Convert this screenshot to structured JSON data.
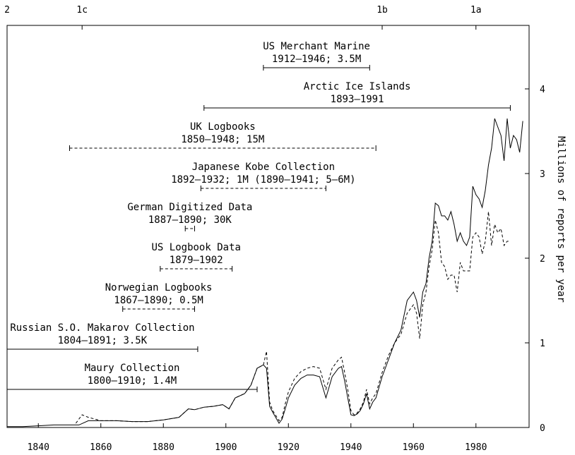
{
  "chart_data": {
    "type": "line",
    "x": {
      "lim": [
        1830,
        1997
      ],
      "ticks": [
        1840,
        1860,
        1880,
        1900,
        1920,
        1940,
        1960,
        1980
      ]
    },
    "y": {
      "lim": [
        0,
        4.75
      ],
      "ticks": [
        0,
        1,
        2,
        3,
        4
      ],
      "label": "Millions of reports per year"
    },
    "top_axis": {
      "ticks": [
        {
          "x": 1830,
          "label": "2"
        },
        {
          "x": 1854,
          "label": "1c"
        },
        {
          "x": 1950,
          "label": "1b"
        },
        {
          "x": 1980,
          "label": "1a"
        }
      ]
    },
    "grid": false,
    "series": [
      {
        "style": "solid",
        "x": [
          1830,
          1835,
          1840,
          1845,
          1850,
          1853,
          1856,
          1860,
          1865,
          1870,
          1875,
          1880,
          1885,
          1888,
          1890,
          1893,
          1896,
          1899,
          1901,
          1903,
          1906,
          1908,
          1910,
          1912,
          1913,
          1914,
          1915,
          1917,
          1918,
          1919,
          1920,
          1922,
          1924,
          1926,
          1928,
          1930,
          1932,
          1934,
          1936,
          1937,
          1938,
          1939,
          1940,
          1941,
          1942,
          1943,
          1944,
          1945,
          1946,
          1947,
          1948,
          1950,
          1952,
          1954,
          1956,
          1958,
          1960,
          1961,
          1962,
          1963,
          1964,
          1965,
          1966,
          1967,
          1968,
          1969,
          1970,
          1971,
          1972,
          1973,
          1974,
          1975,
          1976,
          1977,
          1978,
          1979,
          1980,
          1981,
          1982,
          1983,
          1984,
          1985,
          1986,
          1987,
          1988,
          1989,
          1990,
          1991,
          1992,
          1993,
          1994,
          1995
        ],
        "y": [
          0.01,
          0.01,
          0.02,
          0.03,
          0.03,
          0.03,
          0.08,
          0.08,
          0.08,
          0.07,
          0.07,
          0.09,
          0.12,
          0.22,
          0.21,
          0.24,
          0.25,
          0.27,
          0.22,
          0.35,
          0.4,
          0.5,
          0.7,
          0.74,
          0.7,
          0.25,
          0.18,
          0.05,
          0.1,
          0.22,
          0.35,
          0.5,
          0.58,
          0.62,
          0.62,
          0.6,
          0.35,
          0.6,
          0.7,
          0.72,
          0.55,
          0.35,
          0.15,
          0.14,
          0.16,
          0.2,
          0.28,
          0.4,
          0.22,
          0.3,
          0.35,
          0.6,
          0.8,
          1.0,
          1.15,
          1.5,
          1.6,
          1.5,
          1.3,
          1.6,
          1.7,
          2.0,
          2.2,
          2.65,
          2.62,
          2.5,
          2.5,
          2.45,
          2.55,
          2.4,
          2.2,
          2.3,
          2.2,
          2.15,
          2.25,
          2.85,
          2.75,
          2.7,
          2.6,
          2.8,
          3.1,
          3.3,
          3.65,
          3.55,
          3.45,
          3.15,
          3.65,
          3.3,
          3.45,
          3.4,
          3.25,
          3.62
        ]
      },
      {
        "style": "dashed",
        "x": [
          1852,
          1854,
          1856,
          1860,
          1865,
          1870,
          1875,
          1880,
          1885,
          1888,
          1890,
          1893,
          1896,
          1899,
          1901,
          1903,
          1906,
          1908,
          1910,
          1912,
          1913,
          1914,
          1915,
          1917,
          1918,
          1919,
          1920,
          1922,
          1924,
          1926,
          1928,
          1930,
          1932,
          1934,
          1936,
          1937,
          1938,
          1939,
          1940,
          1941,
          1942,
          1943,
          1944,
          1945,
          1946,
          1947,
          1948,
          1950,
          1952,
          1954,
          1956,
          1958,
          1960,
          1961,
          1962,
          1963,
          1964,
          1965,
          1966,
          1967,
          1968,
          1969,
          1970,
          1971,
          1972,
          1973,
          1974,
          1975,
          1976,
          1977,
          1978,
          1979,
          1980,
          1981,
          1982,
          1983,
          1984,
          1985,
          1986,
          1987,
          1988,
          1989,
          1990,
          1991
        ],
        "y": [
          0.05,
          0.15,
          0.12,
          0.08,
          0.08,
          0.07,
          0.07,
          0.09,
          0.12,
          0.22,
          0.21,
          0.24,
          0.25,
          0.27,
          0.22,
          0.35,
          0.4,
          0.5,
          0.7,
          0.74,
          0.9,
          0.3,
          0.2,
          0.08,
          0.12,
          0.28,
          0.42,
          0.58,
          0.66,
          0.7,
          0.72,
          0.7,
          0.45,
          0.7,
          0.8,
          0.83,
          0.65,
          0.45,
          0.2,
          0.15,
          0.17,
          0.22,
          0.3,
          0.45,
          0.28,
          0.35,
          0.4,
          0.65,
          0.85,
          1.0,
          1.1,
          1.35,
          1.45,
          1.35,
          1.05,
          1.45,
          1.6,
          1.9,
          2.1,
          2.45,
          2.3,
          1.95,
          1.9,
          1.75,
          1.8,
          1.8,
          1.6,
          1.95,
          1.85,
          1.85,
          1.85,
          2.25,
          2.3,
          2.25,
          2.05,
          2.2,
          2.55,
          2.15,
          2.4,
          2.3,
          2.35,
          2.15,
          2.2,
          2.2
        ]
      }
    ],
    "collections": [
      {
        "title": "US Merchant Marine",
        "subtitle": "1912–1946; 3.5M",
        "start": 1912,
        "end": 1946,
        "row": 0,
        "style": "solid"
      },
      {
        "title": "Arctic Ice Islands",
        "subtitle": "1893–1991",
        "start": 1893,
        "end": 1991,
        "row": 1,
        "style": "solid"
      },
      {
        "title": "UK Logbooks",
        "subtitle": "1850–1948; 15M",
        "start": 1850,
        "end": 1948,
        "row": 2,
        "style": "dashed"
      },
      {
        "title": "Japanese Kobe Collection",
        "subtitle": "1892–1932; 1M (1890–1941; 5–6M)",
        "start": 1892,
        "end": 1932,
        "row": 3,
        "style": "dashed"
      },
      {
        "title": "German Digitized Data",
        "subtitle": "1887–1890; 30K",
        "start": 1887,
        "end": 1890,
        "row": 4,
        "style": "dashed"
      },
      {
        "title": "US Logbook Data",
        "subtitle": "1879–1902",
        "start": 1879,
        "end": 1902,
        "row": 5,
        "style": "dashed"
      },
      {
        "title": "Norwegian Logbooks",
        "subtitle": "1867–1890; 0.5M",
        "start": 1867,
        "end": 1890,
        "row": 6,
        "style": "dashed"
      },
      {
        "title": "Russian S.O. Makarov Collection",
        "subtitle": "1804–1891; 3.5K",
        "start": 1804,
        "end": 1891,
        "row": 7,
        "style": "solid"
      },
      {
        "title": "Maury Collection",
        "subtitle": "1800–1910; 1.4M",
        "start": 1800,
        "end": 1910,
        "row": 8,
        "style": "solid"
      }
    ]
  }
}
